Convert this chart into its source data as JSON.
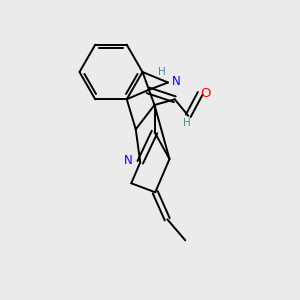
{
  "background_color": "#ebebeb",
  "atom_colors": {
    "N": "#0000ff",
    "O": "#ff0000",
    "H_label": "#4a9090",
    "C": "#000000"
  },
  "figsize": [
    3.0,
    3.0
  ],
  "dpi": 100,
  "lw": 1.4
}
